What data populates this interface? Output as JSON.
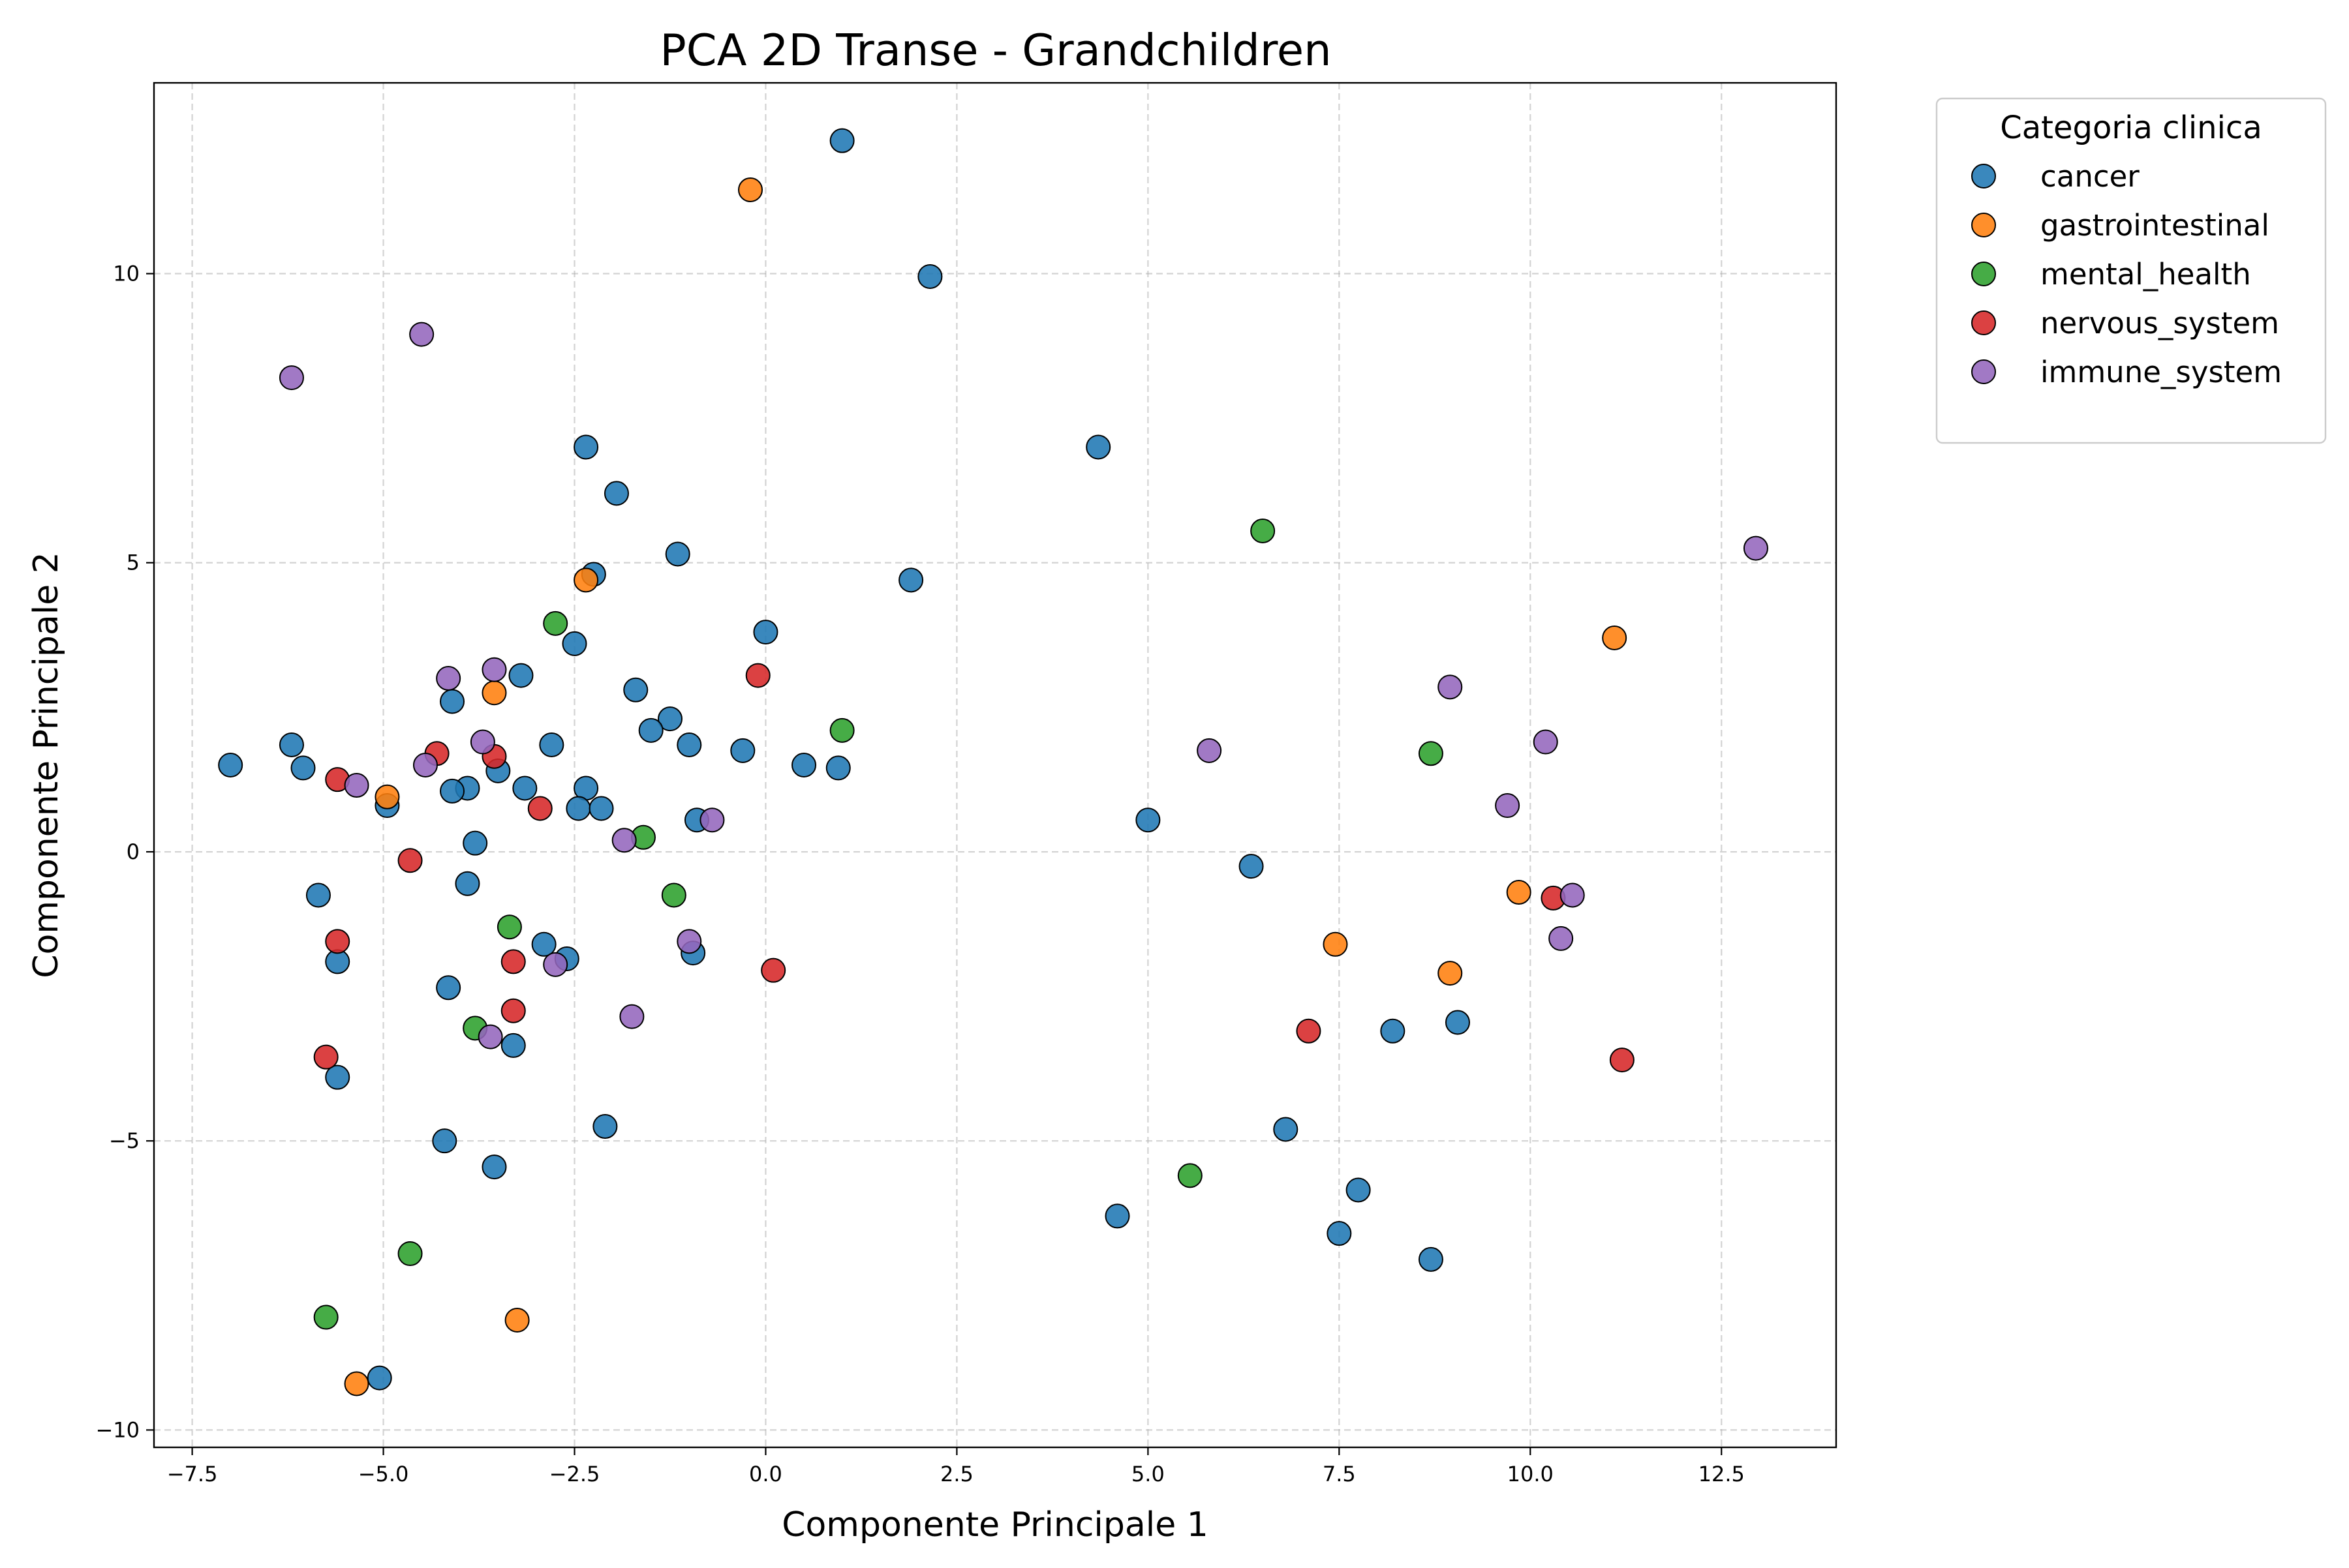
{
  "chart_data": {
    "type": "scatter",
    "title": "PCA 2D Transe - Grandchildren",
    "xlabel": "Componente Principale 1",
    "ylabel": "Componente Principale 2",
    "xlim": [
      -8.0,
      14.0
    ],
    "ylim": [
      -10.3,
      13.3
    ],
    "x_ticks": [
      -7.5,
      -5.0,
      -2.5,
      0.0,
      2.5,
      5.0,
      7.5,
      10.0,
      12.5
    ],
    "x_tick_labels": [
      "−7.5",
      "−5.0",
      "−2.5",
      "0.0",
      "2.5",
      "5.0",
      "7.5",
      "10.0",
      "12.5"
    ],
    "y_ticks": [
      -10,
      -5,
      0,
      5,
      10
    ],
    "y_tick_labels": [
      "−10",
      "−5",
      "0",
      "5",
      "10"
    ],
    "grid": true,
    "legend": {
      "title": "Categoria clinica",
      "position": "outside-top-right"
    },
    "series": [
      {
        "name": "cancer",
        "color": "#1f77b4",
        "points": [
          [
            1.0,
            12.3
          ],
          [
            2.15,
            9.95
          ],
          [
            4.35,
            7.0
          ],
          [
            -2.35,
            7.0
          ],
          [
            -1.95,
            6.2
          ],
          [
            -2.25,
            4.8
          ],
          [
            -1.15,
            5.15
          ],
          [
            1.9,
            4.7
          ],
          [
            -2.5,
            3.6
          ],
          [
            0.0,
            3.8
          ],
          [
            -3.2,
            3.05
          ],
          [
            -1.7,
            2.8
          ],
          [
            -4.1,
            2.6
          ],
          [
            -1.25,
            2.3
          ],
          [
            -1.5,
            2.1
          ],
          [
            -1.0,
            1.85
          ],
          [
            -0.3,
            1.75
          ],
          [
            0.5,
            1.5
          ],
          [
            0.95,
            1.45
          ],
          [
            -6.2,
            1.85
          ],
          [
            -6.05,
            1.45
          ],
          [
            -7.0,
            1.5
          ],
          [
            -2.8,
            1.85
          ],
          [
            -3.5,
            1.4
          ],
          [
            -3.15,
            1.1
          ],
          [
            -3.9,
            1.1
          ],
          [
            -4.1,
            1.05
          ],
          [
            -2.35,
            1.1
          ],
          [
            -2.45,
            0.75
          ],
          [
            -2.15,
            0.75
          ],
          [
            -4.95,
            0.8
          ],
          [
            -0.9,
            0.55
          ],
          [
            -3.8,
            0.15
          ],
          [
            5.0,
            0.55
          ],
          [
            6.35,
            -0.25
          ],
          [
            -5.85,
            -0.75
          ],
          [
            -3.9,
            -0.55
          ],
          [
            -5.6,
            -1.9
          ],
          [
            -2.9,
            -1.6
          ],
          [
            -2.6,
            -1.85
          ],
          [
            -0.95,
            -1.75
          ],
          [
            -4.15,
            -2.35
          ],
          [
            -3.3,
            -3.35
          ],
          [
            8.2,
            -3.1
          ],
          [
            9.05,
            -2.95
          ],
          [
            -5.6,
            -3.9
          ],
          [
            -2.1,
            -4.75
          ],
          [
            -4.2,
            -5.0
          ],
          [
            6.8,
            -4.8
          ],
          [
            -3.55,
            -5.45
          ],
          [
            4.6,
            -6.3
          ],
          [
            7.75,
            -5.85
          ],
          [
            7.5,
            -6.6
          ],
          [
            8.7,
            -7.05
          ],
          [
            -5.05,
            -9.1
          ]
        ]
      },
      {
        "name": "gastrointestinal",
        "color": "#ff7f0e",
        "points": [
          [
            -0.2,
            11.45
          ],
          [
            -2.35,
            4.7
          ],
          [
            11.1,
            3.7
          ],
          [
            -3.55,
            2.75
          ],
          [
            -4.95,
            0.95
          ],
          [
            9.85,
            -0.7
          ],
          [
            7.45,
            -1.6
          ],
          [
            8.95,
            -2.1
          ],
          [
            -3.25,
            -8.1
          ],
          [
            -5.35,
            -9.2
          ]
        ]
      },
      {
        "name": "mental_health",
        "color": "#2ca02c",
        "points": [
          [
            6.5,
            5.55
          ],
          [
            -2.75,
            3.95
          ],
          [
            1.0,
            2.1
          ],
          [
            8.7,
            1.7
          ],
          [
            -1.6,
            0.25
          ],
          [
            -1.2,
            -0.75
          ],
          [
            -3.35,
            -1.3
          ],
          [
            -3.8,
            -3.05
          ],
          [
            5.55,
            -5.6
          ],
          [
            -4.65,
            -6.95
          ],
          [
            -5.75,
            -8.05
          ]
        ]
      },
      {
        "name": "nervous_system",
        "color": "#d62728",
        "points": [
          [
            -0.1,
            3.05
          ],
          [
            -4.3,
            1.7
          ],
          [
            -3.55,
            1.65
          ],
          [
            -5.6,
            1.25
          ],
          [
            -2.95,
            0.75
          ],
          [
            -4.65,
            -0.15
          ],
          [
            10.3,
            -0.8
          ],
          [
            -5.6,
            -1.55
          ],
          [
            -3.3,
            -1.9
          ],
          [
            0.1,
            -2.05
          ],
          [
            -3.3,
            -2.75
          ],
          [
            7.1,
            -3.1
          ],
          [
            -5.75,
            -3.55
          ],
          [
            11.2,
            -3.6
          ]
        ]
      },
      {
        "name": "immune_system",
        "color": "#9467bd",
        "points": [
          [
            -4.5,
            8.95
          ],
          [
            -6.2,
            8.2
          ],
          [
            12.95,
            5.25
          ],
          [
            -3.55,
            3.15
          ],
          [
            -4.15,
            3.0
          ],
          [
            8.95,
            2.85
          ],
          [
            -3.7,
            1.9
          ],
          [
            10.2,
            1.9
          ],
          [
            5.8,
            1.75
          ],
          [
            -4.45,
            1.5
          ],
          [
            -5.35,
            1.15
          ],
          [
            9.7,
            0.8
          ],
          [
            -0.7,
            0.55
          ],
          [
            -1.85,
            0.2
          ],
          [
            10.55,
            -0.75
          ],
          [
            -1.0,
            -1.55
          ],
          [
            10.4,
            -1.5
          ],
          [
            -2.75,
            -1.95
          ],
          [
            -1.75,
            -2.85
          ],
          [
            -3.6,
            -3.2
          ]
        ]
      }
    ]
  }
}
